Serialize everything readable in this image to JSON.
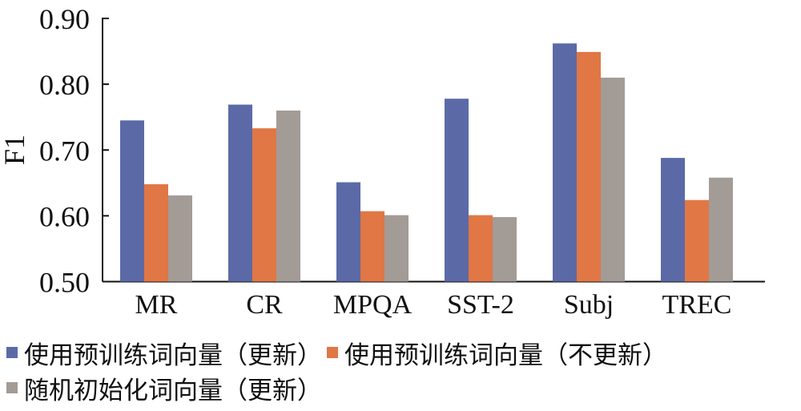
{
  "chart_data": {
    "type": "bar",
    "title": "",
    "xlabel": "",
    "ylabel": "F1",
    "ylim": [
      0.5,
      0.9
    ],
    "yticks": [
      "0.50",
      "0.60",
      "0.70",
      "0.80",
      "0.90"
    ],
    "categories": [
      "MR",
      "CR",
      "MPQA",
      "SST-2",
      "Subj",
      "TREC"
    ],
    "series": [
      {
        "name": "使用预训练词向量（更新）",
        "color": "#5b6aa6",
        "values": [
          0.745,
          0.769,
          0.651,
          0.778,
          0.862,
          0.688
        ]
      },
      {
        "name": "使用预训练词向量（不更新）",
        "color": "#e07745",
        "values": [
          0.648,
          0.733,
          0.607,
          0.601,
          0.849,
          0.624
        ]
      },
      {
        "name": "随机初始化词向量（更新）",
        "color": "#a39b96",
        "values": [
          0.631,
          0.76,
          0.601,
          0.598,
          0.81,
          0.658
        ]
      }
    ],
    "legend_position": "bottom",
    "grid": false
  }
}
